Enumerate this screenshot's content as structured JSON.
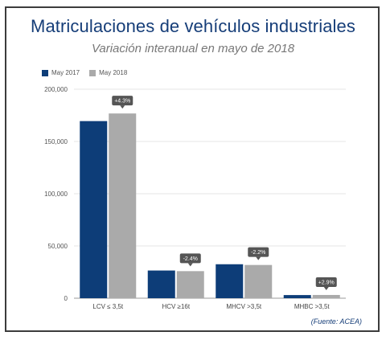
{
  "chart_data": {
    "type": "bar",
    "title": "Matriculaciones de vehículos industriales",
    "subtitle": "Variación interanual en mayo de 2018",
    "categories": [
      "LCV ≤ 3,5t",
      "HCV ≥16t",
      "MHCV >3,5t",
      "MHBC >3,5t"
    ],
    "series": [
      {
        "name": "May 2017",
        "color": "#0d3d78",
        "values": [
          169500,
          26500,
          32500,
          3000
        ]
      },
      {
        "name": "May 2018",
        "color": "#aaaaaa",
        "values": [
          176800,
          25900,
          31800,
          3100
        ]
      }
    ],
    "annotations": [
      "+4.3%",
      "-2.4%",
      "-2.2%",
      "+2.9%"
    ],
    "ylim": [
      0,
      200000
    ],
    "yticks": [
      0,
      50000,
      100000,
      150000,
      200000
    ],
    "ytick_labels": [
      "0",
      "50,000",
      "100,000",
      "150,000",
      "200,000"
    ],
    "xlabel": "",
    "ylabel": "",
    "grid": true,
    "legend_position": "top-left"
  },
  "source": "(Fuente: ACEA)"
}
